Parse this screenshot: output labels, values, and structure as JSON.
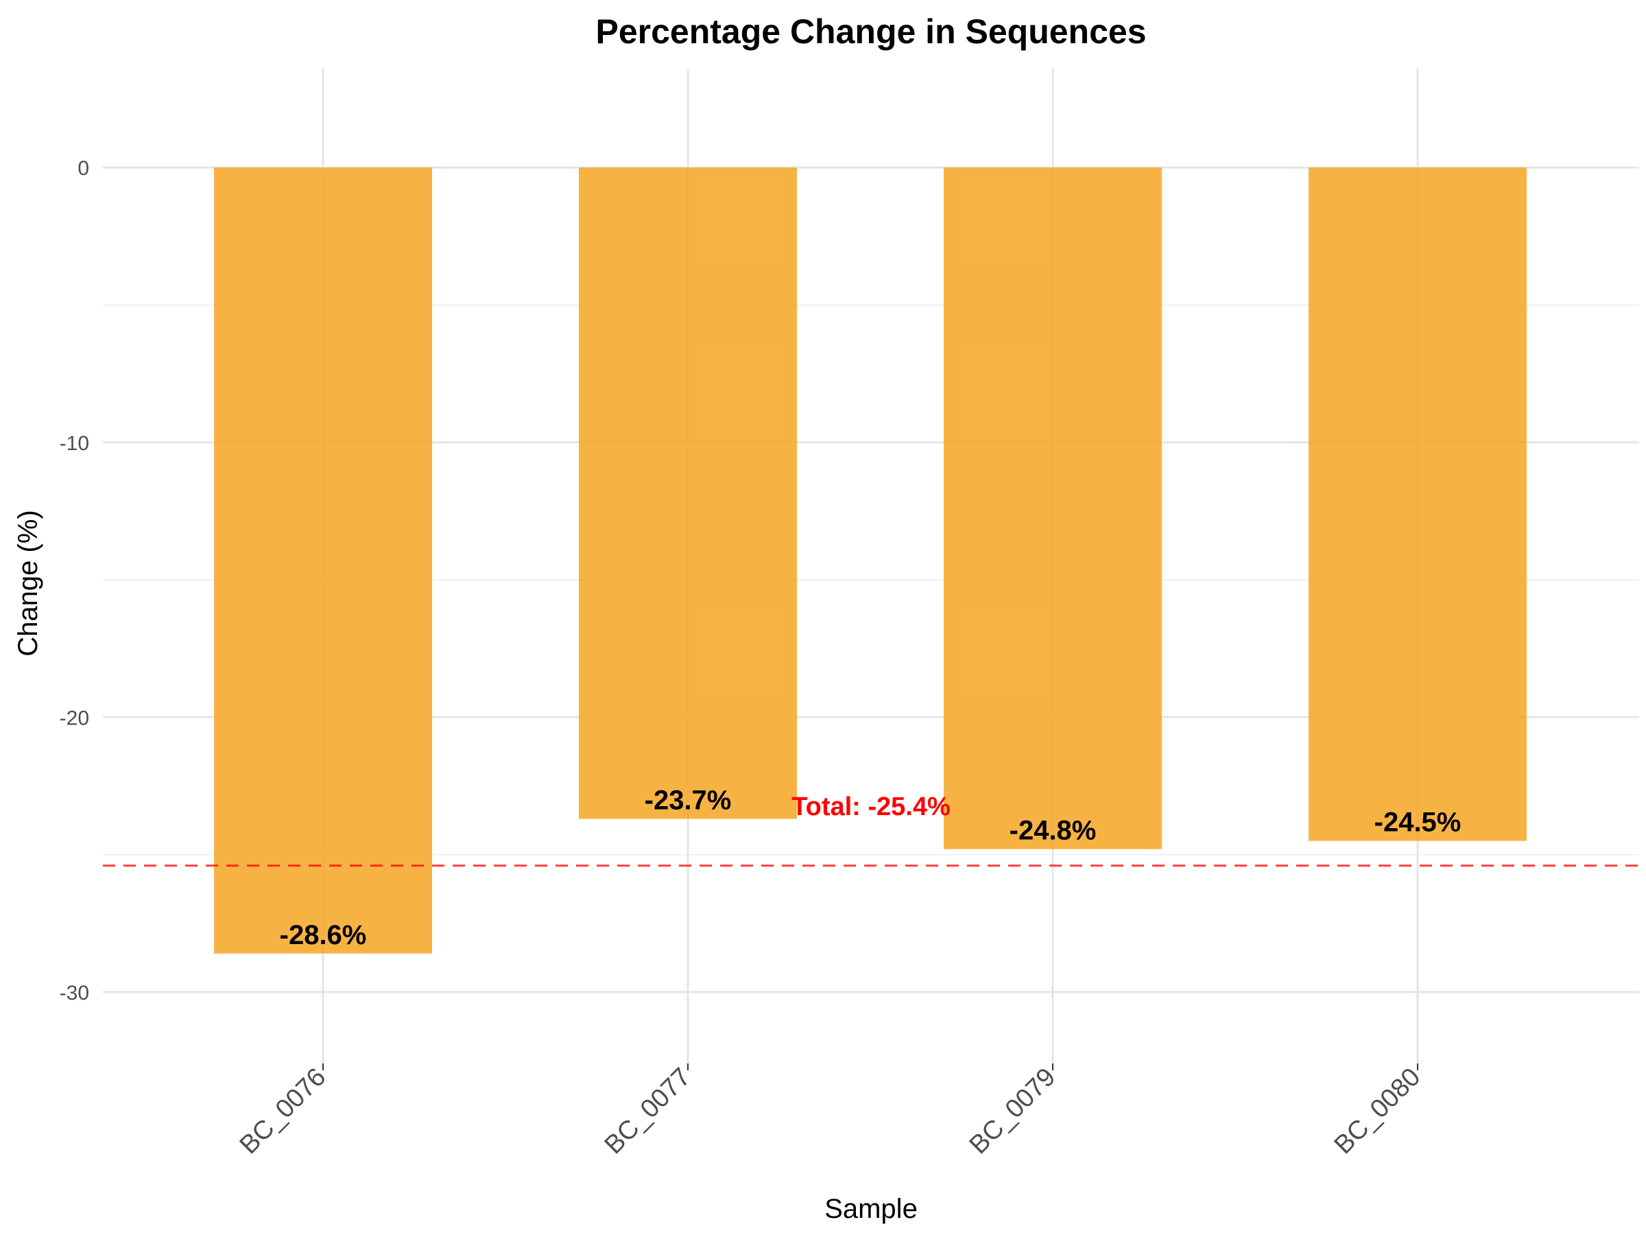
{
  "chart_data": {
    "type": "bar",
    "title": "Percentage Change in Sequences",
    "xlabel": "Sample",
    "ylabel": "Change (%)",
    "categories": [
      "BC_0076",
      "BC_0077",
      "BC_0079",
      "BC_0080"
    ],
    "values": [
      -28.6,
      -23.7,
      -24.8,
      -24.5
    ],
    "value_labels": [
      "-28.6%",
      "-23.7%",
      "-24.8%",
      "-24.5%"
    ],
    "ylim": [
      -32.6,
      3.6
    ],
    "y_ticks": [
      0,
      -10,
      -20,
      -30
    ],
    "y_tick_labels": [
      "0",
      "-10",
      "-20",
      "-30"
    ],
    "reference_line": {
      "value": -25.4,
      "label": "Total: -25.4%",
      "style": "dashed",
      "color": "#ff0000"
    },
    "bar_color": "#f5a623",
    "grid": true,
    "legend": "none"
  }
}
